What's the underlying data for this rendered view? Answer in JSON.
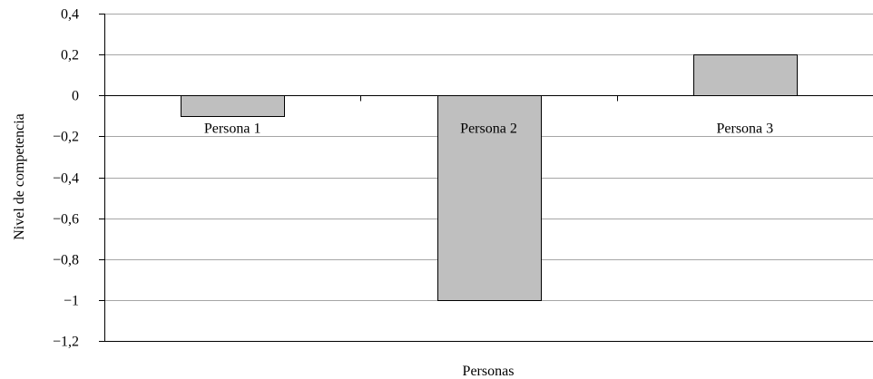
{
  "chart_data": {
    "type": "bar",
    "categories": [
      "Persona 1",
      "Persona 2",
      "Persona 3"
    ],
    "values": [
      -0.1,
      -1,
      0.2
    ],
    "title": "",
    "xlabel": "Personas",
    "ylabel": "Nivel de competencia",
    "ylim": [
      -1.2,
      0.4
    ],
    "yticks": [
      0.4,
      0.2,
      0,
      -0.2,
      -0.4,
      -0.6,
      -0.8,
      -1,
      -1.2
    ],
    "ytick_labels": [
      "0,4",
      "0,2",
      "0",
      "−0,2",
      "−0,4",
      "−0,6",
      "−0,8",
      "−1",
      "−1,2"
    ],
    "grid": "horizontal",
    "legend": "none",
    "colors": {
      "bar_fill": "#bfbfbf",
      "bar_stroke": "#000000",
      "grid": "#a6a6a6",
      "axis": "#000000"
    }
  }
}
